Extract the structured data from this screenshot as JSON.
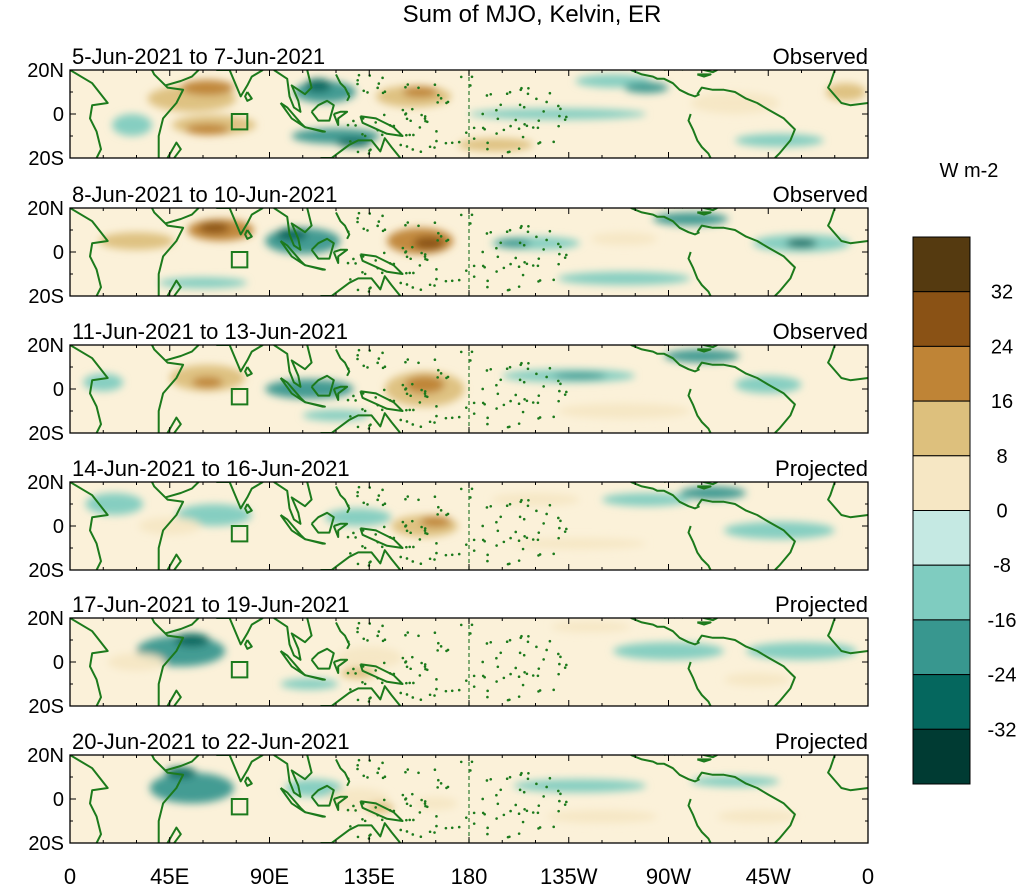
{
  "figure": {
    "title": "Sum of MJO, Kelvin, ER"
  },
  "colorbar": {
    "units": "W m-2",
    "labels": [
      "32",
      "24",
      "16",
      "8",
      "0",
      "-8",
      "-16",
      "-24",
      "-32"
    ],
    "colors": [
      "#553a10",
      "#8a5215",
      "#bf8436",
      "#ddc07d",
      "#f6e7c4",
      "#c5e9e3",
      "#7fccc0",
      "#38978f",
      "#05675e",
      "#003b33"
    ]
  },
  "axes": {
    "lat_labels": [
      "20N",
      "0",
      "20S"
    ],
    "lon_labels": [
      "0",
      "45E",
      "90E",
      "135E",
      "180",
      "135W",
      "90W",
      "45W",
      "0"
    ]
  },
  "palette": {
    "coast": "#1c7a1c",
    "dateline": "#2e7d32"
  },
  "panels": [
    {
      "date_range": "5-Jun-2021 to 7-Jun-2021",
      "type": "Observed",
      "anomalies": [
        {
          "lon": 55,
          "lat": 7,
          "w": 40,
          "h": 12,
          "level": 16
        },
        {
          "lon": 62,
          "lat": 12,
          "w": 24,
          "h": 7,
          "level": 24
        },
        {
          "lon": 65,
          "lat": -5,
          "w": 38,
          "h": 9,
          "level": 16
        },
        {
          "lon": 62,
          "lat": -7,
          "w": 20,
          "h": 5,
          "level": 24
        },
        {
          "lon": 115,
          "lat": 10,
          "w": 28,
          "h": 10,
          "level": -16
        },
        {
          "lon": 112,
          "lat": 13,
          "w": 12,
          "h": 6,
          "level": -24
        },
        {
          "lon": 120,
          "lat": -10,
          "w": 40,
          "h": 7,
          "level": -16
        },
        {
          "lon": 128,
          "lat": -13,
          "w": 16,
          "h": 4,
          "level": -24
        },
        {
          "lon": 155,
          "lat": 8,
          "w": 34,
          "h": 10,
          "level": 16
        },
        {
          "lon": 158,
          "lat": 10,
          "w": 16,
          "h": 5,
          "level": 24
        },
        {
          "lon": 192,
          "lat": -14,
          "w": 34,
          "h": 6,
          "level": 16
        },
        {
          "lon": 28,
          "lat": -5,
          "w": 18,
          "h": 10,
          "level": -8
        },
        {
          "lon": 245,
          "lat": 15,
          "w": 34,
          "h": 6,
          "level": -8
        },
        {
          "lon": 260,
          "lat": 12,
          "w": 20,
          "h": 5,
          "level": -16
        },
        {
          "lon": 220,
          "lat": 0,
          "w": 80,
          "h": 5,
          "level": -8
        },
        {
          "lon": 300,
          "lat": 5,
          "w": 40,
          "h": 10,
          "level": 8
        },
        {
          "lon": 350,
          "lat": 10,
          "w": 18,
          "h": 8,
          "level": 16
        },
        {
          "lon": 320,
          "lat": -12,
          "w": 40,
          "h": 6,
          "level": -8
        }
      ]
    },
    {
      "date_range": "8-Jun-2021 to 10-Jun-2021",
      "type": "Observed",
      "anomalies": [
        {
          "lon": 30,
          "lat": 5,
          "w": 34,
          "h": 8,
          "level": 16
        },
        {
          "lon": 68,
          "lat": 10,
          "w": 30,
          "h": 10,
          "level": 24
        },
        {
          "lon": 65,
          "lat": 11,
          "w": 14,
          "h": 5,
          "level": 32
        },
        {
          "lon": 105,
          "lat": 5,
          "w": 34,
          "h": 12,
          "level": -16
        },
        {
          "lon": 100,
          "lat": 8,
          "w": 14,
          "h": 6,
          "level": -24
        },
        {
          "lon": 158,
          "lat": 5,
          "w": 30,
          "h": 12,
          "level": 24
        },
        {
          "lon": 162,
          "lat": 4,
          "w": 14,
          "h": 6,
          "level": 32
        },
        {
          "lon": 210,
          "lat": 4,
          "w": 40,
          "h": 6,
          "level": -8
        },
        {
          "lon": 200,
          "lat": 4,
          "w": 16,
          "h": 4,
          "level": -16
        },
        {
          "lon": 250,
          "lat": 6,
          "w": 30,
          "h": 6,
          "level": 8
        },
        {
          "lon": 280,
          "lat": 15,
          "w": 34,
          "h": 6,
          "level": -16
        },
        {
          "lon": 330,
          "lat": 4,
          "w": 44,
          "h": 8,
          "level": -8
        },
        {
          "lon": 330,
          "lat": 4,
          "w": 14,
          "h": 4,
          "level": -24
        },
        {
          "lon": 60,
          "lat": -14,
          "w": 40,
          "h": 5,
          "level": -8
        },
        {
          "lon": 250,
          "lat": -12,
          "w": 60,
          "h": 6,
          "level": -8
        }
      ]
    },
    {
      "date_range": "11-Jun-2021 to 13-Jun-2021",
      "type": "Observed",
      "anomalies": [
        {
          "lon": 15,
          "lat": 3,
          "w": 18,
          "h": 8,
          "level": -8
        },
        {
          "lon": 62,
          "lat": 5,
          "w": 34,
          "h": 12,
          "level": 16
        },
        {
          "lon": 62,
          "lat": 3,
          "w": 14,
          "h": 5,
          "level": 24
        },
        {
          "lon": 108,
          "lat": 0,
          "w": 40,
          "h": 9,
          "level": -16
        },
        {
          "lon": 120,
          "lat": -12,
          "w": 30,
          "h": 5,
          "level": -8
        },
        {
          "lon": 160,
          "lat": 0,
          "w": 36,
          "h": 16,
          "level": 16
        },
        {
          "lon": 160,
          "lat": 2,
          "w": 18,
          "h": 8,
          "level": 24
        },
        {
          "lon": 225,
          "lat": 6,
          "w": 60,
          "h": 6,
          "level": -8
        },
        {
          "lon": 230,
          "lat": 6,
          "w": 24,
          "h": 3,
          "level": -16
        },
        {
          "lon": 285,
          "lat": 15,
          "w": 34,
          "h": 6,
          "level": -16
        },
        {
          "lon": 315,
          "lat": 2,
          "w": 30,
          "h": 8,
          "level": -8
        },
        {
          "lon": 250,
          "lat": -10,
          "w": 60,
          "h": 7,
          "level": 8
        }
      ]
    },
    {
      "date_range": "14-Jun-2021 to 16-Jun-2021",
      "type": "Projected",
      "anomalies": [
        {
          "lon": 20,
          "lat": 10,
          "w": 26,
          "h": 10,
          "level": -8
        },
        {
          "lon": 65,
          "lat": 5,
          "w": 34,
          "h": 10,
          "level": -8
        },
        {
          "lon": 45,
          "lat": 0,
          "w": 28,
          "h": 8,
          "level": 8
        },
        {
          "lon": 130,
          "lat": 4,
          "w": 30,
          "h": 8,
          "level": -8
        },
        {
          "lon": 160,
          "lat": 0,
          "w": 30,
          "h": 10,
          "level": 16
        },
        {
          "lon": 165,
          "lat": 2,
          "w": 14,
          "h": 5,
          "level": 24
        },
        {
          "lon": 210,
          "lat": 12,
          "w": 40,
          "h": 6,
          "level": 8
        },
        {
          "lon": 260,
          "lat": 12,
          "w": 40,
          "h": 6,
          "level": -8
        },
        {
          "lon": 290,
          "lat": 15,
          "w": 30,
          "h": 6,
          "level": -16
        },
        {
          "lon": 320,
          "lat": -2,
          "w": 50,
          "h": 8,
          "level": -8
        },
        {
          "lon": 230,
          "lat": -8,
          "w": 60,
          "h": 5,
          "level": 8
        }
      ]
    },
    {
      "date_range": "17-Jun-2021 to 19-Jun-2021",
      "type": "Projected",
      "anomalies": [
        {
          "lon": 50,
          "lat": 5,
          "w": 40,
          "h": 14,
          "level": -16
        },
        {
          "lon": 55,
          "lat": 10,
          "w": 16,
          "h": 6,
          "level": -24
        },
        {
          "lon": 30,
          "lat": 0,
          "w": 26,
          "h": 8,
          "level": 8
        },
        {
          "lon": 135,
          "lat": 2,
          "w": 30,
          "h": 10,
          "level": 8
        },
        {
          "lon": 130,
          "lat": -5,
          "w": 16,
          "h": 5,
          "level": 16
        },
        {
          "lon": 108,
          "lat": -10,
          "w": 26,
          "h": 5,
          "level": -8
        },
        {
          "lon": 235,
          "lat": 16,
          "w": 36,
          "h": 5,
          "level": 8
        },
        {
          "lon": 270,
          "lat": 5,
          "w": 50,
          "h": 8,
          "level": -8
        },
        {
          "lon": 330,
          "lat": 5,
          "w": 50,
          "h": 8,
          "level": -8
        },
        {
          "lon": 310,
          "lat": -8,
          "w": 30,
          "h": 6,
          "level": 8
        }
      ]
    },
    {
      "date_range": "20-Jun-2021 to 22-Jun-2021",
      "type": "Projected",
      "anomalies": [
        {
          "lon": 55,
          "lat": 5,
          "w": 38,
          "h": 14,
          "level": -16
        },
        {
          "lon": 50,
          "lat": 12,
          "w": 14,
          "h": 5,
          "level": -24
        },
        {
          "lon": 110,
          "lat": 5,
          "w": 26,
          "h": 8,
          "level": -8
        },
        {
          "lon": 130,
          "lat": 0,
          "w": 28,
          "h": 10,
          "level": 8
        },
        {
          "lon": 140,
          "lat": -4,
          "w": 12,
          "h": 5,
          "level": 16
        },
        {
          "lon": 165,
          "lat": -2,
          "w": 20,
          "h": 6,
          "level": 8
        },
        {
          "lon": 230,
          "lat": 6,
          "w": 60,
          "h": 6,
          "level": -8
        },
        {
          "lon": 240,
          "lat": -8,
          "w": 50,
          "h": 6,
          "level": 8
        },
        {
          "lon": 310,
          "lat": -8,
          "w": 36,
          "h": 6,
          "level": 8
        },
        {
          "lon": 300,
          "lat": 8,
          "w": 40,
          "h": 5,
          "level": -8
        }
      ]
    }
  ]
}
